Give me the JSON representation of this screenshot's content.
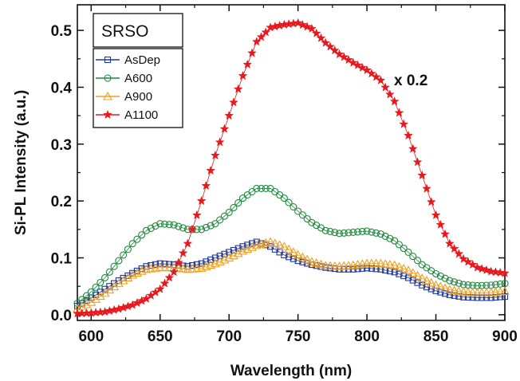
{
  "chart_data": {
    "type": "scatter",
    "xlabel": "Wavelength (nm)",
    "ylabel": "Si-PL Intensity (a.u.)",
    "xlim": [
      590,
      900
    ],
    "ylim": [
      -0.01,
      0.545
    ],
    "x_ticks": [
      600,
      650,
      700,
      750,
      800,
      850,
      900
    ],
    "y_ticks": [
      0.0,
      0.1,
      0.2,
      0.3,
      0.4,
      0.5
    ],
    "y_tick_labels": [
      "0.0",
      "0.1",
      "0.2",
      "0.3",
      "0.4",
      "0.5"
    ],
    "grid": false,
    "legend_position": "top-left",
    "sample_label": "SRSO",
    "annotation": "x 0.2",
    "x": [
      590,
      600,
      610,
      620,
      630,
      640,
      650,
      660,
      670,
      680,
      690,
      700,
      710,
      720,
      730,
      740,
      750,
      760,
      770,
      780,
      790,
      800,
      810,
      820,
      830,
      840,
      850,
      860,
      870,
      880,
      890,
      900
    ],
    "series": [
      {
        "name": "AsDep",
        "color": "#1f3a9e",
        "marker": "square",
        "values": [
          0.015,
          0.03,
          0.045,
          0.06,
          0.073,
          0.085,
          0.09,
          0.088,
          0.085,
          0.09,
          0.1,
          0.11,
          0.12,
          0.128,
          0.12,
          0.105,
          0.095,
          0.088,
          0.083,
          0.08,
          0.08,
          0.082,
          0.08,
          0.075,
          0.065,
          0.052,
          0.042,
          0.035,
          0.031,
          0.03,
          0.03,
          0.032
        ]
      },
      {
        "name": "A600",
        "color": "#1e8a3c",
        "marker": "circle",
        "values": [
          0.02,
          0.04,
          0.065,
          0.095,
          0.125,
          0.148,
          0.16,
          0.158,
          0.15,
          0.15,
          0.16,
          0.18,
          0.205,
          0.222,
          0.222,
          0.205,
          0.182,
          0.162,
          0.148,
          0.143,
          0.145,
          0.147,
          0.142,
          0.13,
          0.11,
          0.088,
          0.072,
          0.06,
          0.053,
          0.051,
          0.052,
          0.055
        ]
      },
      {
        "name": "A900",
        "color": "#f0a020",
        "marker": "triangle",
        "values": [
          0.01,
          0.022,
          0.038,
          0.055,
          0.07,
          0.08,
          0.083,
          0.083,
          0.08,
          0.082,
          0.09,
          0.1,
          0.112,
          0.122,
          0.128,
          0.12,
          0.105,
          0.093,
          0.086,
          0.085,
          0.087,
          0.09,
          0.09,
          0.087,
          0.078,
          0.064,
          0.052,
          0.044,
          0.04,
          0.038,
          0.039,
          0.041
        ]
      },
      {
        "name": "A1100",
        "color": "#e8191e",
        "marker": "star",
        "values": [
          0.002,
          0.003,
          0.005,
          0.01,
          0.017,
          0.028,
          0.045,
          0.075,
          0.125,
          0.2,
          0.28,
          0.35,
          0.42,
          0.48,
          0.505,
          0.51,
          0.513,
          0.503,
          0.478,
          0.458,
          0.443,
          0.43,
          0.412,
          0.375,
          0.315,
          0.245,
          0.175,
          0.125,
          0.098,
          0.083,
          0.076,
          0.073
        ]
      }
    ]
  }
}
